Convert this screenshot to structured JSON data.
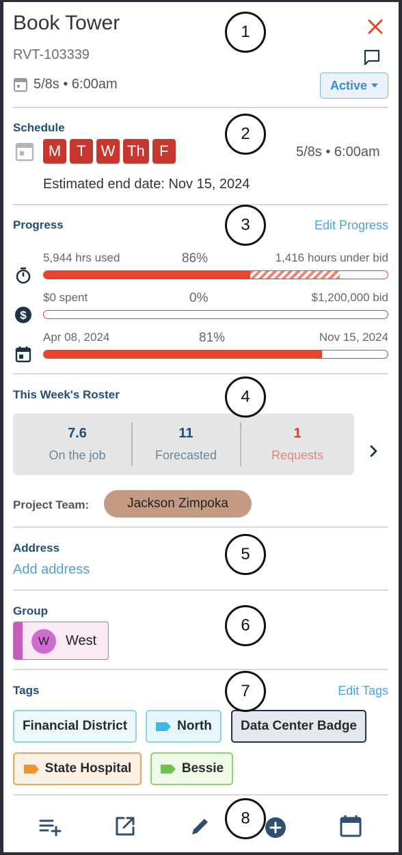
{
  "header": {
    "title": "Book Tower",
    "code": "RVT-103339",
    "schedule_summary": "5/8s • 6:00am",
    "status_label": "Active"
  },
  "schedule": {
    "section_title": "Schedule",
    "days": [
      "M",
      "T",
      "W",
      "Th",
      "F"
    ],
    "summary": "5/8s • 6:00am",
    "estimated_end": "Estimated end date: Nov 15, 2024"
  },
  "progress": {
    "section_title": "Progress",
    "edit_label": "Edit Progress",
    "hours": {
      "left": "5,944 hrs used",
      "center": "86%",
      "right": "1,416 hours under bid",
      "fill_fraction": 0.6,
      "hatch_fraction": 0.26
    },
    "cost": {
      "left": "$0 spent",
      "center": "0%",
      "right": "$1,200,000 bid",
      "fill_fraction": 0.0
    },
    "time": {
      "left": "Apr 08, 2024",
      "center": "81%",
      "right": "Nov 15, 2024",
      "fill_fraction": 0.81
    }
  },
  "roster": {
    "section_title": "This Week's Roster",
    "items": [
      {
        "value": "7.6",
        "label": "On the job"
      },
      {
        "value": "11",
        "label": "Forecasted"
      },
      {
        "value": "1",
        "label": "Requests"
      }
    ],
    "team_label": "Project Team:",
    "team_member": "Jackson Zimpoka"
  },
  "address": {
    "section_title": "Address",
    "add_label": "Add address"
  },
  "group": {
    "section_title": "Group",
    "avatar_letter": "W",
    "name": "West"
  },
  "tags": {
    "section_title": "Tags",
    "edit_label": "Edit Tags",
    "items": [
      {
        "label": "Financial District"
      },
      {
        "label": "North"
      },
      {
        "label": "Data Center Badge"
      },
      {
        "label": "State Hospital"
      },
      {
        "label": "Bessie"
      }
    ]
  },
  "annotations": [
    "1",
    "2",
    "3",
    "4",
    "5",
    "6",
    "7",
    "8"
  ],
  "colors": {
    "accent": "#4aa3e0",
    "day_chip": "#c8372d",
    "progress_fill": "#e8452e",
    "section_title": "#1f4e79",
    "requests": "#e8857a",
    "close": "#e8452e"
  },
  "icons": {
    "close": "close-icon",
    "comment": "comment-icon",
    "calendar": "calendar-icon",
    "timer": "timer-icon",
    "dollar": "dollar-icon",
    "event": "calendar-event-icon",
    "chevron": "chevron-right-icon",
    "toolbar": [
      "playlist-add-icon",
      "open-external-icon",
      "pencil-icon",
      "add-circle-icon",
      "calendar-icon"
    ]
  }
}
